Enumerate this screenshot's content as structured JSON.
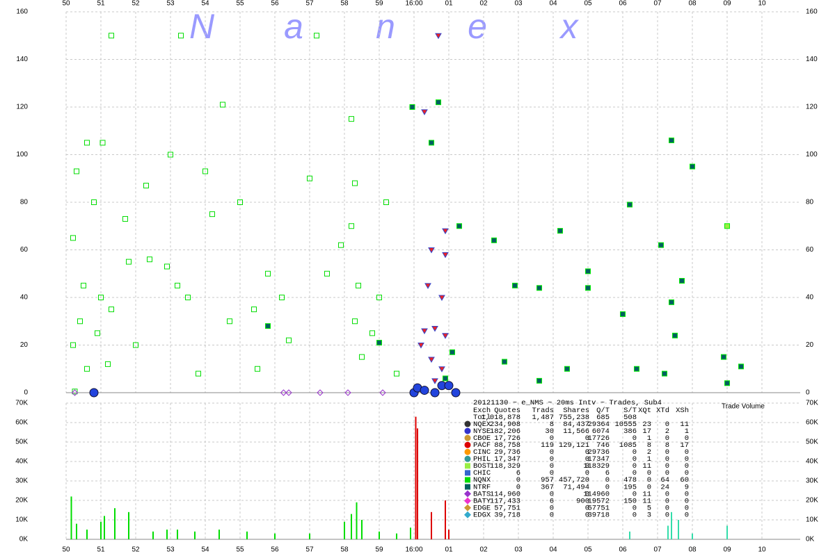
{
  "watermark": [
    "N",
    "a",
    "n",
    "e",
    "x"
  ],
  "chart_data": [
    {
      "type": "scatter",
      "xlim": [
        0,
        21.1
      ],
      "ylim": [
        0,
        160
      ],
      "xticks": [
        {
          "value": 0,
          "label": "50"
        },
        {
          "value": 1,
          "label": "51"
        },
        {
          "value": 2,
          "label": "52"
        },
        {
          "value": 3,
          "label": "53"
        },
        {
          "value": 4,
          "label": "54"
        },
        {
          "value": 5,
          "label": "55"
        },
        {
          "value": 6,
          "label": "56"
        },
        {
          "value": 7,
          "label": "57"
        },
        {
          "value": 8,
          "label": "58"
        },
        {
          "value": 9,
          "label": "59"
        },
        {
          "value": 10,
          "label": "16:00"
        },
        {
          "value": 11,
          "label": "01"
        },
        {
          "value": 12,
          "label": "02"
        },
        {
          "value": 13,
          "label": "03"
        },
        {
          "value": 14,
          "label": "04"
        },
        {
          "value": 15,
          "label": "05"
        },
        {
          "value": 16,
          "label": "06"
        },
        {
          "value": 17,
          "label": "07"
        },
        {
          "value": 18,
          "label": "08"
        },
        {
          "value": 19,
          "label": "09"
        },
        {
          "value": 20,
          "label": "10"
        }
      ],
      "yticks": [
        0,
        20,
        40,
        60,
        80,
        100,
        120,
        140,
        160
      ],
      "grid": true,
      "series": [
        {
          "color": "#00dd00",
          "marker": "hollow-square",
          "x": [
            0.3,
            0.6,
            1.05,
            1.3,
            0.8,
            0.2,
            0.5,
            1.0,
            1.3,
            0.4,
            0.9,
            0.2,
            0.6,
            1.2,
            1.8,
            1.7,
            2.3,
            2.4,
            2.9,
            3.3,
            3.0,
            3.2,
            3.5,
            4.0,
            4.5,
            4.2,
            4.7,
            5.0,
            5.4,
            5.8,
            6.2,
            6.4,
            7.2,
            7.0,
            7.5,
            7.9,
            8.2,
            8.3,
            8.2,
            8.4,
            8.3,
            8.5,
            9.2,
            9.0,
            9.5,
            8.8,
            5.5,
            3.8,
            2.0,
            0.25
          ],
          "values": [
            93,
            105,
            105,
            150,
            80,
            65,
            45,
            40,
            35,
            30,
            25,
            20,
            10,
            12,
            55,
            73,
            87,
            56,
            53,
            150,
            100,
            45,
            40,
            93,
            121,
            75,
            30,
            80,
            35,
            50,
            40,
            22,
            150,
            90,
            50,
            62,
            115,
            88,
            70,
            45,
            30,
            15,
            80,
            40,
            8,
            25,
            10,
            8,
            20,
            0.5
          ]
        },
        {
          "color": "#006060",
          "marker": "filled-square",
          "x": [
            9.95,
            10.7,
            10.5,
            11.3,
            12.3,
            12.9,
            13.6,
            14.2,
            15.0,
            15.0,
            16.2,
            16.0,
            17.1,
            17.4,
            17.4,
            18.0,
            17.7,
            17.5,
            16.4,
            14.4,
            13.6,
            19.0,
            19.4,
            17.2,
            18.9,
            12.6,
            11.1,
            10.9,
            9.0,
            5.8
          ],
          "values": [
            120,
            122,
            105,
            70,
            64,
            45,
            44,
            68,
            51,
            44,
            79,
            33,
            62,
            38,
            106,
            95,
            47,
            24,
            10,
            10,
            5,
            4,
            11,
            8,
            15,
            13,
            17,
            6,
            21,
            28
          ]
        },
        {
          "color": "#ee2222",
          "marker": "triangle",
          "x": [
            10.7,
            10.3,
            10.5,
            10.9,
            10.4,
            10.8,
            10.3,
            10.6,
            10.9,
            10.2,
            10.5,
            10.8,
            10.6,
            10.9
          ],
          "values": [
            150,
            118,
            60,
            58,
            45,
            40,
            26,
            27,
            24,
            20,
            14,
            10,
            5,
            68
          ]
        },
        {
          "color": "#2244dd",
          "marker": "circle",
          "x": [
            0.8,
            10.0,
            10.1,
            10.3,
            10.6,
            10.8,
            11.0,
            11.2
          ],
          "values": [
            0,
            0,
            2,
            1,
            0,
            3,
            3,
            0
          ]
        },
        {
          "color": "#9933cc",
          "marker": "diamond",
          "x": [
            0.25,
            6.25,
            6.4,
            7.3,
            8.1,
            9.1
          ],
          "values": [
            0,
            0,
            0,
            0,
            0,
            0
          ]
        },
        {
          "color": "#99ee44",
          "marker": "filled-square",
          "x": [
            19.0
          ],
          "values": [
            70
          ]
        }
      ]
    },
    {
      "type": "bar",
      "title": "Trade Volume",
      "xlim": [
        0,
        21.1
      ],
      "ylim": [
        0,
        70000
      ],
      "xticks": [
        {
          "value": 0,
          "label": "50"
        },
        {
          "value": 1,
          "label": "51"
        },
        {
          "value": 2,
          "label": "52"
        },
        {
          "value": 3,
          "label": "53"
        },
        {
          "value": 4,
          "label": "54"
        },
        {
          "value": 5,
          "label": "55"
        },
        {
          "value": 6,
          "label": "56"
        },
        {
          "value": 7,
          "label": "57"
        },
        {
          "value": 8,
          "label": "58"
        },
        {
          "value": 9,
          "label": "59"
        },
        {
          "value": 10,
          "label": "16:00"
        },
        {
          "value": 11,
          "label": "01"
        },
        {
          "value": 12,
          "label": "02"
        },
        {
          "value": 13,
          "label": "03"
        },
        {
          "value": 14,
          "label": "04"
        },
        {
          "value": 15,
          "label": "05"
        },
        {
          "value": 16,
          "label": "06"
        },
        {
          "value": 17,
          "label": "07"
        },
        {
          "value": 18,
          "label": "08"
        },
        {
          "value": 19,
          "label": "09"
        },
        {
          "value": 20,
          "label": "10"
        }
      ],
      "yticks": [
        {
          "value": 0,
          "label": "0K"
        },
        {
          "value": 10000,
          "label": "10K"
        },
        {
          "value": 20000,
          "label": "20K"
        },
        {
          "value": 30000,
          "label": "30K"
        },
        {
          "value": 40000,
          "label": "40K"
        },
        {
          "value": 50000,
          "label": "50K"
        },
        {
          "value": 60000,
          "label": "60K"
        },
        {
          "value": 70000,
          "label": "70K"
        }
      ],
      "grid": true,
      "series": [
        {
          "color": "#00dd00",
          "x": [
            0.15,
            0.3,
            0.6,
            1.0,
            1.1,
            1.4,
            1.8,
            2.5,
            2.9,
            3.2,
            3.7,
            4.4,
            5.2,
            6.0,
            7.0,
            8.0,
            8.2,
            8.35,
            8.5,
            9.0,
            9.5,
            9.9
          ],
          "values": [
            22000,
            8000,
            5000,
            9000,
            12000,
            16000,
            14000,
            4000,
            5000,
            5000,
            4000,
            5000,
            4000,
            3000,
            3000,
            9000,
            13000,
            19000,
            10000,
            4000,
            3000,
            6000
          ]
        },
        {
          "color": "#dd0000",
          "x": [
            10.05,
            10.1,
            10.5,
            10.9,
            11.0
          ],
          "values": [
            63000,
            57000,
            14000,
            20000,
            5000
          ]
        },
        {
          "color": "#33ddaa",
          "x": [
            16.2,
            17.3,
            17.4,
            17.6,
            18.0,
            19.0
          ],
          "values": [
            4000,
            7000,
            14000,
            10000,
            3000,
            7000
          ]
        }
      ]
    }
  ],
  "legend_table": {
    "title": "20121130 ~ e_NMS ~ 20ms Intv ~ Trades, Sub4",
    "header": [
      "Exch",
      "Quotes",
      "Trads",
      "Shares",
      "Q/T",
      "S/T",
      "XQt",
      "XTd",
      "XSh"
    ],
    "rows": [
      {
        "cells": [
          "Totl",
          "1,018,878",
          "1,487",
          "755,238",
          "685",
          "508"
        ]
      },
      {
        "marker": "circle",
        "color": "#333333",
        "cells": [
          "NQEX",
          "234,908",
          "8",
          "84,437",
          "29364",
          "10555",
          "23",
          "0",
          "11"
        ]
      },
      {
        "marker": "circle",
        "color": "#3333cc",
        "cells": [
          "NYSE",
          "182,206",
          "30",
          "11,566",
          "6074",
          "386",
          "17",
          "2",
          "1"
        ]
      },
      {
        "marker": "circle",
        "color": "#cc9933",
        "cells": [
          "CBOE",
          "17,726",
          "0",
          "0",
          "17726",
          "0",
          "1",
          "0",
          "0"
        ]
      },
      {
        "marker": "circle",
        "color": "#dd0000",
        "cells": [
          "PACF",
          "88,758",
          "119",
          "129,121",
          "746",
          "1085",
          "8",
          "8",
          "17"
        ]
      },
      {
        "marker": "circle",
        "color": "#ff9900",
        "cells": [
          "CINC",
          "29,736",
          "0",
          "0",
          "29736",
          "0",
          "2",
          "0",
          "0"
        ]
      },
      {
        "marker": "circle",
        "color": "#339999",
        "cells": [
          "PHIL",
          "17,347",
          "0",
          "0",
          "17347",
          "0",
          "1",
          "0",
          "0"
        ]
      },
      {
        "marker": "square",
        "color": "#99ee44",
        "cells": [
          "BOST",
          "118,329",
          "0",
          "0",
          "118329",
          "0",
          "11",
          "0",
          "0"
        ]
      },
      {
        "marker": "square",
        "color": "#3366cc",
        "cells": [
          "CHIC",
          "6",
          "0",
          "0",
          "6",
          "0",
          "0",
          "0",
          "0"
        ]
      },
      {
        "marker": "square",
        "color": "#00dd00",
        "cells": [
          "NQNX",
          "0",
          "957",
          "457,720",
          "0",
          "478",
          "0",
          "64",
          "60"
        ]
      },
      {
        "marker": "square",
        "color": "#006060",
        "cells": [
          "NTRF",
          "0",
          "367",
          "71,494",
          "0",
          "195",
          "0",
          "24",
          "9"
        ]
      },
      {
        "marker": "diamond",
        "color": "#9933cc",
        "cells": [
          "BATS",
          "114,960",
          "0",
          "0",
          "114960",
          "0",
          "11",
          "0",
          "0"
        ]
      },
      {
        "marker": "diamond",
        "color": "#ee33cc",
        "cells": [
          "BATY",
          "117,433",
          "6",
          "900",
          "19572",
          "150",
          "11",
          "0",
          "0"
        ]
      },
      {
        "marker": "diamond",
        "color": "#cc9933",
        "cells": [
          "EDGE",
          "57,751",
          "0",
          "0",
          "57751",
          "0",
          "5",
          "0",
          "0"
        ]
      },
      {
        "marker": "diamond",
        "color": "#33aacc",
        "cells": [
          "EDGX",
          "39,718",
          "0",
          "0",
          "39718",
          "0",
          "3",
          "0",
          "0"
        ]
      }
    ]
  }
}
